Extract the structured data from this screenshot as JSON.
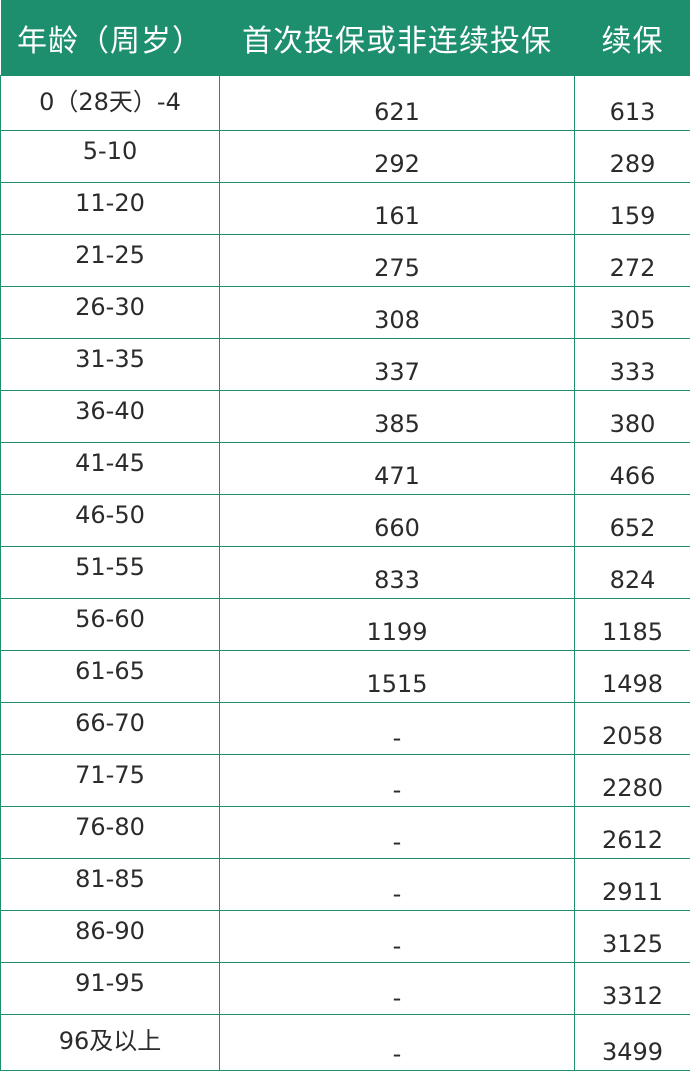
{
  "header": {
    "age": "年龄（周岁）",
    "first": "首次投保或非连续投保",
    "renew": "续保"
  },
  "rows": [
    {
      "age": "0（28天）-4",
      "first": "621",
      "renew": "613"
    },
    {
      "age": "5-10",
      "first": "292",
      "renew": "289"
    },
    {
      "age": "11-20",
      "first": "161",
      "renew": "159"
    },
    {
      "age": "21-25",
      "first": "275",
      "renew": "272"
    },
    {
      "age": "26-30",
      "first": "308",
      "renew": "305"
    },
    {
      "age": "31-35",
      "first": "337",
      "renew": "333"
    },
    {
      "age": "36-40",
      "first": "385",
      "renew": "380"
    },
    {
      "age": "41-45",
      "first": "471",
      "renew": "466"
    },
    {
      "age": "46-50",
      "first": "660",
      "renew": "652"
    },
    {
      "age": "51-55",
      "first": "833",
      "renew": "824"
    },
    {
      "age": "56-60",
      "first": "1199",
      "renew": "1185"
    },
    {
      "age": "61-65",
      "first": "1515",
      "renew": "1498"
    },
    {
      "age": "66-70",
      "first": "-",
      "renew": "2058"
    },
    {
      "age": "71-75",
      "first": "-",
      "renew": "2280"
    },
    {
      "age": "76-80",
      "first": "-",
      "renew": "2612"
    },
    {
      "age": "81-85",
      "first": "-",
      "renew": "2911"
    },
    {
      "age": "86-90",
      "first": "-",
      "renew": "3125"
    },
    {
      "age": "91-95",
      "first": "-",
      "renew": "3312"
    },
    {
      "age": "96及以上",
      "first": "-",
      "renew": "3499"
    }
  ],
  "colors": {
    "accent": "#1e8f6e"
  }
}
